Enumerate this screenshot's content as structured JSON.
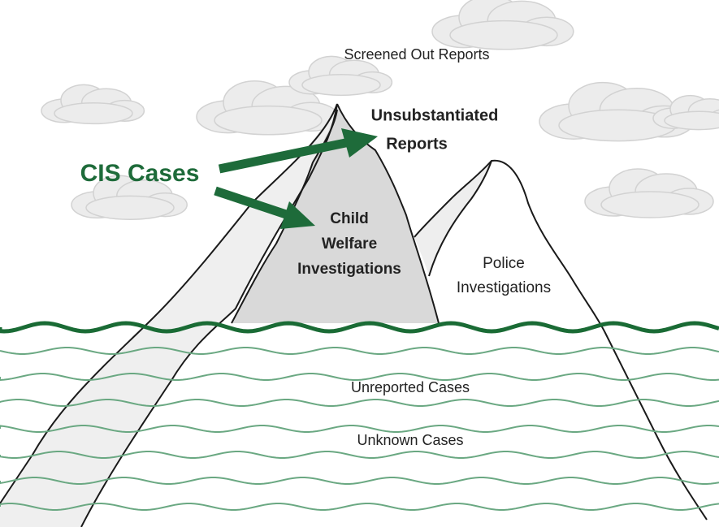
{
  "labels": {
    "screened_out": "Screened Out Reports",
    "unsubstantiated": [
      "Unsubstantiated",
      "Reports"
    ],
    "cis_cases": "CIS Cases",
    "child_welfare": [
      "Child",
      "Welfare",
      "Investigations"
    ],
    "police": [
      "Police",
      "Investigations"
    ],
    "unreported": "Unreported Cases",
    "unknown": "Unknown Cases"
  }
}
